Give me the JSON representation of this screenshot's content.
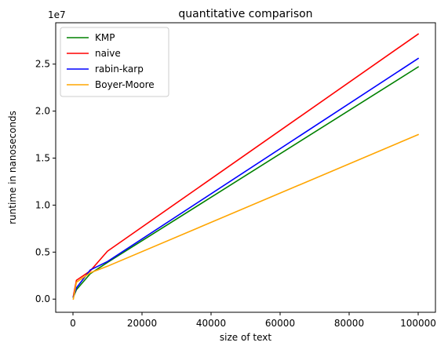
{
  "chart_data": {
    "type": "line",
    "title": "quantitative comparison",
    "xlabel": "size of text",
    "ylabel": "runtime in nanoseconds",
    "y_offset_label": "1e7",
    "xlim": [
      -5000,
      105000
    ],
    "ylim": [
      -1400000,
      29400000
    ],
    "xticks": [
      0,
      20000,
      40000,
      60000,
      80000,
      100000
    ],
    "xtick_labels": [
      "0",
      "20000",
      "40000",
      "60000",
      "80000",
      "100000"
    ],
    "yticks": [
      0,
      5000000,
      10000000,
      15000000,
      20000000,
      25000000
    ],
    "ytick_labels": [
      "0.0",
      "0.5",
      "1.0",
      "1.5",
      "2.0",
      "2.5"
    ],
    "grid": false,
    "legend_position": "top-left",
    "series": [
      {
        "name": "KMP",
        "color": "#008000",
        "x": [
          100,
          1000,
          5000,
          10000,
          100000
        ],
        "y": [
          200000,
          1000000,
          2700000,
          3900000,
          24700000
        ]
      },
      {
        "name": "naive",
        "color": "#ff0000",
        "x": [
          100,
          1000,
          5000,
          10000,
          100000
        ],
        "y": [
          300000,
          2000000,
          3000000,
          5100000,
          28200000
        ]
      },
      {
        "name": "rabin-karp",
        "color": "#0000ff",
        "x": [
          100,
          1000,
          5000,
          10000,
          100000
        ],
        "y": [
          250000,
          1200000,
          3100000,
          4000000,
          25600000
        ]
      },
      {
        "name": "Boyer-Moore",
        "color": "#ffa500",
        "x": [
          100,
          1000,
          5000,
          10000,
          100000
        ],
        "y": [
          0,
          1800000,
          2800000,
          3500000,
          17500000
        ]
      }
    ]
  }
}
